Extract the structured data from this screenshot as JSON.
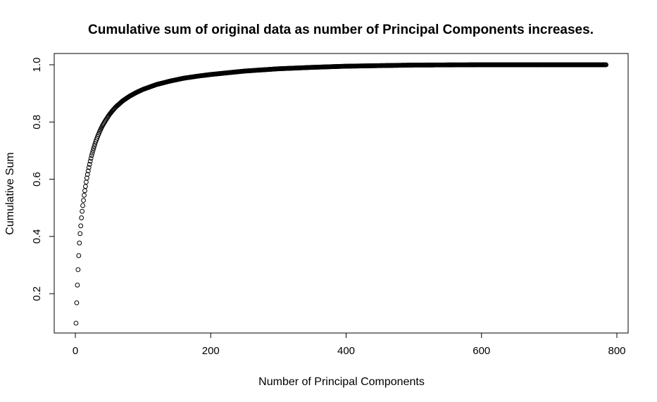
{
  "chart_data": {
    "type": "scatter",
    "title": "Cumulative sum of original data as number of Principal Components increases.",
    "xlabel": "Number of Principal Components",
    "ylabel": "Cumulative Sum",
    "xlim": [
      -20,
      804
    ],
    "ylim": [
      0.05,
      1.02
    ],
    "x_ticks": [
      0,
      200,
      400,
      600,
      800
    ],
    "y_ticks": [
      0.2,
      0.4,
      0.6,
      0.8,
      1.0
    ],
    "y_tick_labels": [
      "0.2",
      "0.4",
      "0.6",
      "0.8",
      "1.0"
    ],
    "marker": "open-circle",
    "grid": false,
    "legend": "none",
    "colors": {
      "marker": "#000000",
      "background": "#ffffff"
    },
    "n_points": 784,
    "series": [
      {
        "x": [
          1,
          2,
          3,
          4,
          5,
          6,
          7,
          8,
          9,
          10,
          11,
          12,
          13,
          14,
          15,
          16,
          17,
          18,
          19,
          20,
          22,
          24,
          26,
          28,
          30,
          33,
          36,
          40,
          45,
          50,
          55,
          60,
          70,
          80,
          90,
          100,
          120,
          140,
          160,
          180,
          200,
          250,
          300,
          350,
          400,
          450,
          500,
          600,
          700,
          784
        ],
        "y": [
          0.097,
          0.168,
          0.23,
          0.284,
          0.333,
          0.377,
          0.41,
          0.437,
          0.465,
          0.488,
          0.508,
          0.526,
          0.544,
          0.56,
          0.575,
          0.59,
          0.604,
          0.617,
          0.629,
          0.641,
          0.663,
          0.683,
          0.7,
          0.716,
          0.731,
          0.75,
          0.767,
          0.787,
          0.807,
          0.825,
          0.84,
          0.853,
          0.874,
          0.89,
          0.903,
          0.914,
          0.931,
          0.943,
          0.953,
          0.96,
          0.966,
          0.978,
          0.986,
          0.991,
          0.995,
          0.997,
          0.999,
          1.0,
          1.0,
          1.0
        ]
      }
    ]
  }
}
